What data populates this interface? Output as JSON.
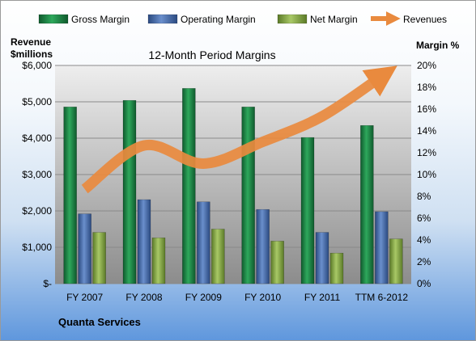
{
  "chart_data": {
    "type": "bar",
    "title": "12-Month Period Margins",
    "categories": [
      "FY 2007",
      "FY 2008",
      "FY 2009",
      "FY 2010",
      "FY 2011",
      "TTM 6-2012"
    ],
    "y_left": {
      "label_line1": "Revenue",
      "label_line2": "$millions",
      "ylim": [
        0,
        6000
      ],
      "ticks": [
        "$-",
        "$1,000",
        "$2,000",
        "$3,000",
        "$4,000",
        "$5,000",
        "$6,000"
      ]
    },
    "y_right": {
      "label": "Margin %",
      "ylim": [
        0,
        20
      ],
      "ticks": [
        "0%",
        "2%",
        "4%",
        "6%",
        "8%",
        "10%",
        "12%",
        "14%",
        "16%",
        "18%",
        "20%"
      ]
    },
    "series": [
      {
        "name": "Gross Margin",
        "kind": "bar",
        "axis": "right",
        "color": "#1f8a4a",
        "values": [
          16.2,
          16.8,
          17.9,
          16.2,
          13.4,
          14.5
        ]
      },
      {
        "name": "Operating Margin",
        "kind": "bar",
        "axis": "right",
        "color": "#4a6fae",
        "values": [
          6.4,
          7.7,
          7.5,
          6.8,
          4.7,
          6.6
        ]
      },
      {
        "name": "Net Margin",
        "kind": "bar",
        "axis": "right",
        "color": "#8aac48",
        "values": [
          4.7,
          4.2,
          5.0,
          3.9,
          2.8,
          4.1
        ]
      },
      {
        "name": "Revenues",
        "kind": "line",
        "axis": "left",
        "color": "#e98a3e",
        "values": [
          2600,
          3800,
          3300,
          3900,
          4600,
          5700
        ]
      }
    ],
    "grid": true,
    "legend": "top"
  },
  "footer": {
    "company": "Quanta Services"
  }
}
